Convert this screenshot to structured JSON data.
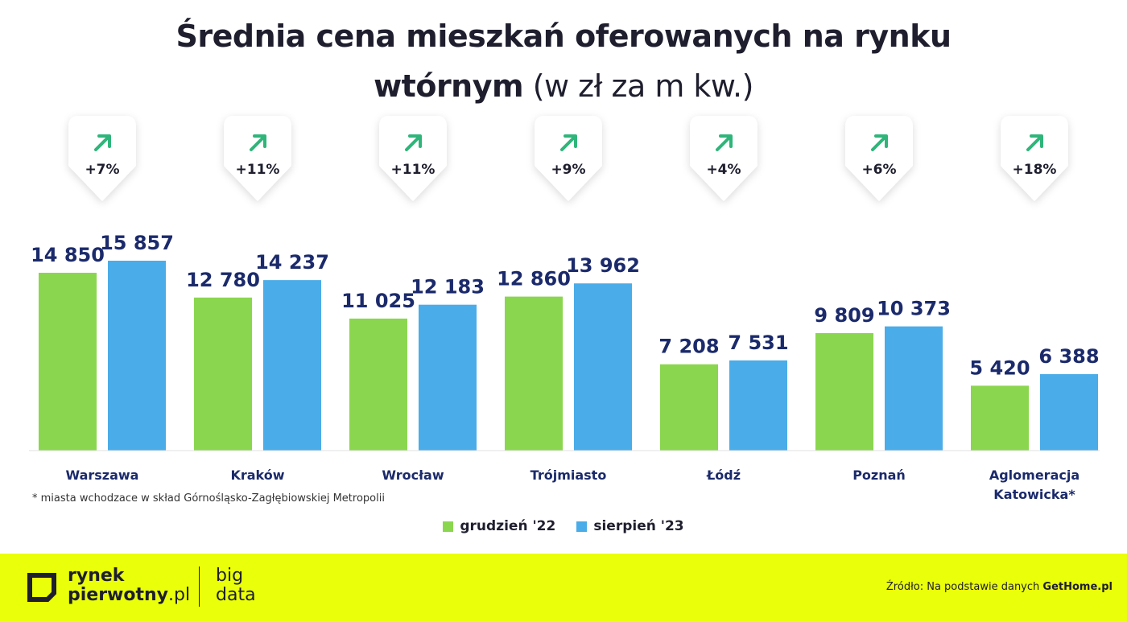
{
  "header": {
    "title_line1": "Średnia cena mieszkań oferowanych na rynku",
    "title_line2_bold": "wtórnym",
    "title_line2_rest": "(w zł za m kw.)"
  },
  "chart_data": {
    "type": "bar",
    "title": "Średnia cena mieszkań oferowanych na rynku wtórnym (w zł za m kw.)",
    "categories": [
      "Warszawa",
      "Kraków",
      "Wrocław",
      "Trójmiasto",
      "Łódź",
      "Poznań",
      "Aglomeracja\nKatowicka*"
    ],
    "series": [
      {
        "name": "grudzień '22",
        "color": "#8bd64f",
        "values": [
          14850,
          12780,
          11025,
          12860,
          7208,
          9809,
          5420
        ],
        "labels": [
          "14 850",
          "12 780",
          "11 025",
          "12 860",
          "7 208",
          "9 809",
          "5 420"
        ]
      },
      {
        "name": "sierpień '23",
        "color": "#4aace8",
        "values": [
          15857,
          14237,
          12183,
          13962,
          7531,
          10373,
          6388
        ],
        "labels": [
          "15 857",
          "14 237",
          "12 183",
          "13 962",
          "7 531",
          "10 373",
          "6 388"
        ]
      }
    ],
    "changes": [
      "+7%",
      "+11%",
      "+11%",
      "+9%",
      "+4%",
      "+6%",
      "+18%"
    ],
    "change_arrow_color": "#2fb57a",
    "ylim": [
      0,
      18000
    ],
    "grid": false,
    "legend": "bottom-center",
    "value_label_color": "#1b2a6b"
  },
  "footnote": "* miasta wchodzace w skład Górnośląsko-Zagłębiowskiej Metropolii",
  "legend": {
    "items": [
      {
        "label": "grudzień '22",
        "color": "#8bd64f"
      },
      {
        "label": "sierpień '23",
        "color": "#4aace8"
      }
    ]
  },
  "footer": {
    "brand_line1": "rynek",
    "brand_line2_bold": "pierwotny",
    "brand_line2_light": ".pl",
    "brand2_line1": "big",
    "brand2_line2": "data",
    "source_prefix": "Źródło: Na podstawie danych",
    "source_name": "GetHome.pl",
    "background": "#eaff0a"
  }
}
